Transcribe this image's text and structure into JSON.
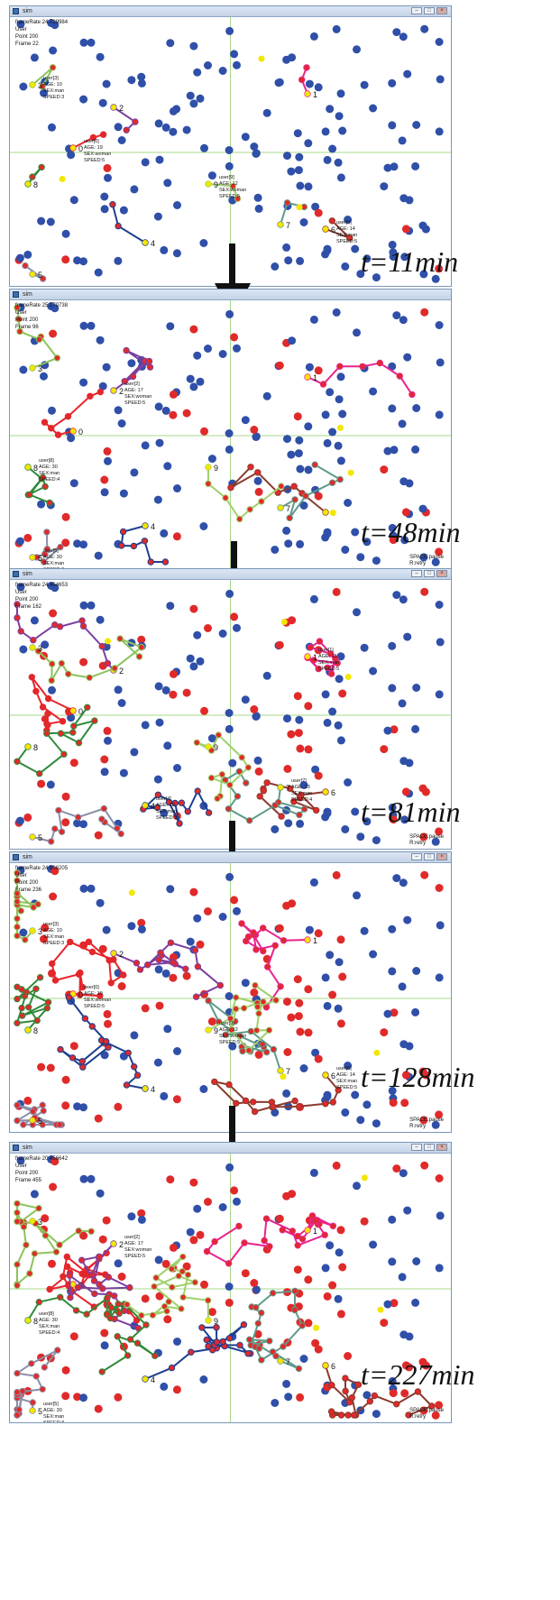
{
  "panels": [
    {
      "window_title": "sim",
      "frame_rate": "frameRate 24.729984",
      "user_line": "User",
      "point": "Point 200",
      "frame": "Frame 22",
      "time_label": "t=11min"
    },
    {
      "window_title": "sim",
      "frame_rate": "frameRate 25.170738",
      "user_line": "User",
      "point": "Point 200",
      "frame": "Frame 96",
      "time_label": "t=48min"
    },
    {
      "window_title": "sim",
      "frame_rate": "frameRate 24.454653",
      "user_line": "User",
      "point": "Point 200",
      "frame": "Frame 162",
      "time_label": "t=81min"
    },
    {
      "window_title": "sim",
      "frame_rate": "frameRate 24.606205",
      "user_line": "User",
      "point": "Point 200",
      "frame": "Frame 236",
      "time_label": "t=128min"
    },
    {
      "window_title": "sim",
      "frame_rate": "frameRate 20.456642",
      "user_line": "User",
      "point": "Point 200",
      "frame": "Frame 455",
      "time_label": "t=227min"
    }
  ],
  "controls": {
    "space": "SPACE:pause",
    "retry": "R:retry"
  },
  "colors": {
    "poi": "#2f4fa8",
    "visited": "#e02a2a",
    "yellow": "#f3e600",
    "grid": "#a8d88a",
    "track_colors": [
      "#e8232c",
      "#e8238c",
      "#7b3fa0",
      "#8bc35a",
      "#1d3f8f",
      "#8a8fa8",
      "#8b3a2e",
      "#5e9a8a",
      "#2e8a3a",
      "#9fd06a"
    ]
  },
  "agents": [
    {
      "id": "0",
      "user": "user[0]",
      "age": "AGE: 19",
      "sex": "SEX:woman",
      "speed": "SPEED:5"
    },
    {
      "id": "1",
      "user": "user[1]",
      "age": "AGE: 15",
      "sex": "SEX:man",
      "speed": "SPEED:5"
    },
    {
      "id": "2",
      "user": "user[2]",
      "age": "AGE: 17",
      "sex": "SEX:woman",
      "speed": "SPEED:5"
    },
    {
      "id": "3",
      "user": "user[3]",
      "age": "AGE: 10",
      "sex": "SEX:man",
      "speed": "SPEED:3"
    },
    {
      "id": "4",
      "user": "user[4]",
      "age": "AGE: 19",
      "sex": "SEX:man",
      "speed": "SPEED:3"
    },
    {
      "id": "5",
      "user": "user[5]",
      "age": "AGE: 30",
      "sex": "SEX:man",
      "speed": "SPEED:3"
    },
    {
      "id": "6",
      "user": "user[6]",
      "age": "AGE: 14",
      "sex": "SEX:man",
      "speed": "SPEED:5"
    },
    {
      "id": "7",
      "user": "user[7]",
      "age": "AGE: 23",
      "sex": "SEX:man",
      "speed": "SPEED:4"
    },
    {
      "id": "8",
      "user": "user[8]",
      "age": "AGE: 30",
      "sex": "SEX:man",
      "speed": "SPEED:4"
    },
    {
      "id": "9",
      "user": "user[9]",
      "age": "AGE: 12",
      "sex": "SEX:woman",
      "speed": "SPEED:5"
    }
  ]
}
